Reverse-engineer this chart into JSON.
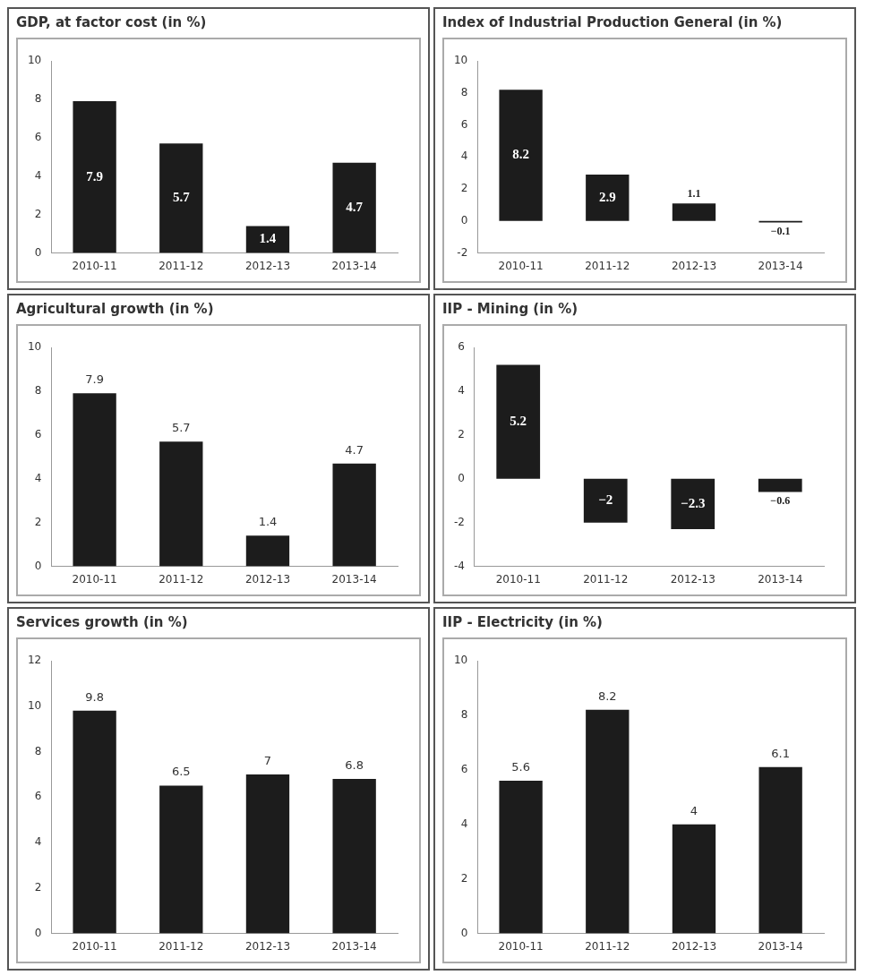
{
  "chart_data": [
    {
      "type": "bar",
      "title": "GDP, at factor cost (in %)",
      "categories": [
        "2010-11",
        "2011-12",
        "2012-13",
        "2013-14"
      ],
      "values": [
        7.9,
        5.7,
        1.4,
        4.7
      ],
      "color": "#1c1c1c",
      "ylim": [
        0,
        10
      ],
      "yticks": [
        0,
        2,
        4,
        6,
        8,
        10
      ],
      "grid": false,
      "value_labels": [
        "7.9",
        "5.7",
        "1.4",
        "4.7"
      ]
    },
    {
      "type": "bar",
      "title": "Index of Industrial Production General (in %)",
      "categories": [
        "2010-11",
        "2011-12",
        "2012-13",
        "2013-14"
      ],
      "values": [
        8.2,
        2.9,
        1.1,
        -0.1
      ],
      "color": "#1c1c1c",
      "ylim": [
        -2,
        10
      ],
      "yticks": [
        -2,
        0,
        2,
        4,
        6,
        8,
        10
      ],
      "grid": false,
      "value_labels": [
        "8.2",
        "2.9",
        "1.1",
        "−0.1"
      ]
    },
    {
      "type": "bar",
      "title": "Agricultural growth (in %)",
      "categories": [
        "2010-11",
        "2011-12",
        "2012-13",
        "2013-14"
      ],
      "values": [
        7.9,
        5.7,
        1.4,
        4.7
      ],
      "color": "#1c1c1c",
      "ylim": [
        0,
        10
      ],
      "yticks": [
        0,
        2,
        4,
        6,
        8,
        10
      ],
      "grid": false,
      "value_labels": [
        "7.9",
        "5.7",
        "1.4",
        "4.7"
      ]
    },
    {
      "type": "bar",
      "title": "IIP - Mining (in %)",
      "categories": [
        "2010-11",
        "2011-12",
        "2012-13",
        "2013-14"
      ],
      "values": [
        5.2,
        -2,
        -2.3,
        -0.6
      ],
      "color": "#1c1c1c",
      "ylim": [
        -4,
        6
      ],
      "yticks": [
        -4,
        -2,
        0,
        2,
        4,
        6
      ],
      "grid": false,
      "value_labels": [
        "5.2",
        "−2",
        "−2.3",
        "−0.6"
      ]
    },
    {
      "type": "bar",
      "title": "Services growth (in %)",
      "categories": [
        "2010-11",
        "2011-12",
        "2012-13",
        "2013-14"
      ],
      "values": [
        9.8,
        6.5,
        7,
        6.8
      ],
      "color": "#1c1c1c",
      "ylim": [
        0,
        12
      ],
      "yticks": [
        0,
        2,
        4,
        6,
        8,
        10,
        12
      ],
      "grid": false,
      "value_labels": [
        "9.8",
        "6.5",
        "7",
        "6.8"
      ]
    },
    {
      "type": "bar",
      "title": "IIP - Electricity (in %)",
      "categories": [
        "2010-11",
        "2011-12",
        "2012-13",
        "2013-14"
      ],
      "values": [
        5.6,
        8.2,
        4,
        6.1
      ],
      "color": "#1c1c1c",
      "ylim": [
        0,
        10
      ],
      "yticks": [
        0,
        2,
        4,
        6,
        8,
        10
      ],
      "grid": false,
      "value_labels": [
        "5.6",
        "8.2",
        "4",
        "6.1"
      ]
    }
  ]
}
